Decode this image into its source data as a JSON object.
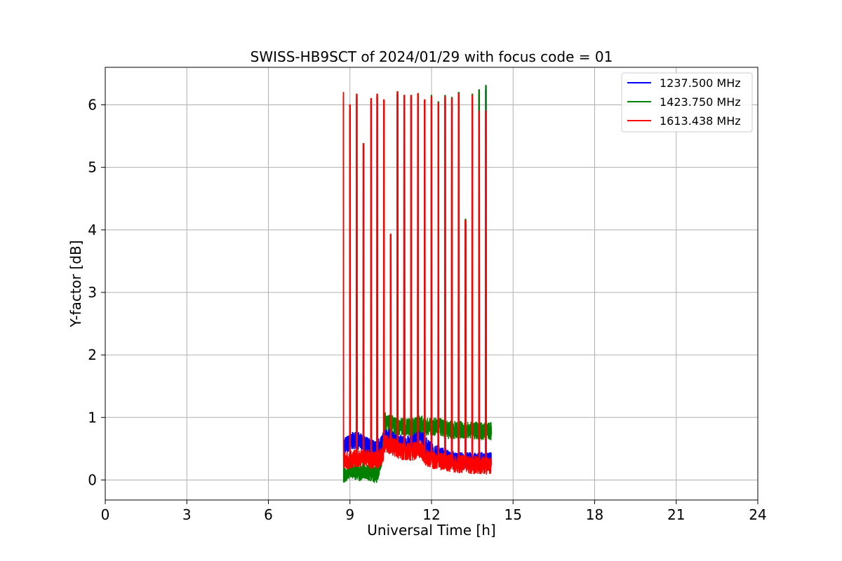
{
  "chart_data": {
    "type": "line",
    "title": "SWISS-HB9SCT of 2024/01/29 with focus code = 01",
    "xlabel": "Universal Time [h]",
    "ylabel": "Y-factor [dB]",
    "xlim": [
      0,
      24
    ],
    "ylim": [
      -0.32,
      6.6
    ],
    "xticks": [
      0,
      3,
      6,
      9,
      12,
      15,
      18,
      21,
      24
    ],
    "yticks": [
      0,
      1,
      2,
      3,
      4,
      5,
      6
    ],
    "grid": true,
    "legend_position": "top-right",
    "series": [
      {
        "name": "1237.500 MHz",
        "color": "#0000ff",
        "x": [
          8.75,
          8.8,
          9.0,
          9.2,
          9.4,
          9.6,
          9.8,
          10.0,
          10.2,
          10.3,
          10.5,
          10.8,
          11.0,
          11.3,
          11.6,
          11.8,
          12.0,
          12.3,
          12.6,
          12.9,
          13.2,
          13.5,
          13.8,
          14.0,
          14.2
        ],
        "y": [
          0.55,
          0.55,
          0.6,
          0.65,
          0.6,
          0.55,
          0.5,
          0.5,
          0.6,
          0.75,
          0.7,
          0.6,
          0.55,
          0.6,
          0.7,
          0.55,
          0.45,
          0.4,
          0.35,
          0.3,
          0.3,
          0.3,
          0.3,
          0.3,
          0.3
        ]
      },
      {
        "name": "1423.750 MHz",
        "color": "#008000",
        "x": [
          8.75,
          8.8,
          9.0,
          9.2,
          9.4,
          9.6,
          9.8,
          10.0,
          10.2,
          10.3,
          10.5,
          10.8,
          11.0,
          11.3,
          11.6,
          11.8,
          12.0,
          12.3,
          12.6,
          12.9,
          13.2,
          13.5,
          13.8,
          14.0,
          14.2
        ],
        "y": [
          0.1,
          0.1,
          0.15,
          0.15,
          0.12,
          0.12,
          0.1,
          0.1,
          0.4,
          0.95,
          0.9,
          0.85,
          0.85,
          0.85,
          0.9,
          0.85,
          0.85,
          0.85,
          0.8,
          0.8,
          0.8,
          0.8,
          0.78,
          0.78,
          0.78
        ]
      },
      {
        "name": "1613.438 MHz",
        "color": "#ff0000",
        "x": [
          8.75,
          8.8,
          9.0,
          9.2,
          9.4,
          9.6,
          9.8,
          10.0,
          10.2,
          10.3,
          10.5,
          10.8,
          11.0,
          11.3,
          11.6,
          11.8,
          12.0,
          12.3,
          12.6,
          12.9,
          13.2,
          13.5,
          13.8,
          14.0,
          14.2
        ],
        "y": [
          0.3,
          0.3,
          0.32,
          0.35,
          0.35,
          0.35,
          0.32,
          0.32,
          0.4,
          0.6,
          0.55,
          0.48,
          0.45,
          0.45,
          0.5,
          0.35,
          0.32,
          0.3,
          0.28,
          0.26,
          0.25,
          0.24,
          0.24,
          0.23,
          0.23
        ]
      }
    ],
    "peaks": [
      {
        "x": 8.75,
        "y": 6.2
      },
      {
        "x": 9.0,
        "y": 6.0
      },
      {
        "x": 9.25,
        "y": 6.17
      },
      {
        "x": 9.5,
        "y": 5.38
      },
      {
        "x": 9.78,
        "y": 6.1
      },
      {
        "x": 10.0,
        "y": 6.17
      },
      {
        "x": 10.25,
        "y": 6.08
      },
      {
        "x": 10.5,
        "y": 3.93
      },
      {
        "x": 10.75,
        "y": 6.21
      },
      {
        "x": 11.0,
        "y": 6.15
      },
      {
        "x": 11.25,
        "y": 6.15
      },
      {
        "x": 11.5,
        "y": 6.18
      },
      {
        "x": 11.75,
        "y": 6.08
      },
      {
        "x": 12.0,
        "y": 6.13
      },
      {
        "x": 12.25,
        "y": 6.03
      },
      {
        "x": 12.5,
        "y": 6.13
      },
      {
        "x": 12.75,
        "y": 6.1
      },
      {
        "x": 13.0,
        "y": 6.18
      },
      {
        "x": 13.25,
        "y": 4.15
      },
      {
        "x": 13.5,
        "y": 6.15
      },
      {
        "x": 13.75,
        "y": 6.22
      },
      {
        "x": 14.0,
        "y": 6.29
      }
    ]
  }
}
